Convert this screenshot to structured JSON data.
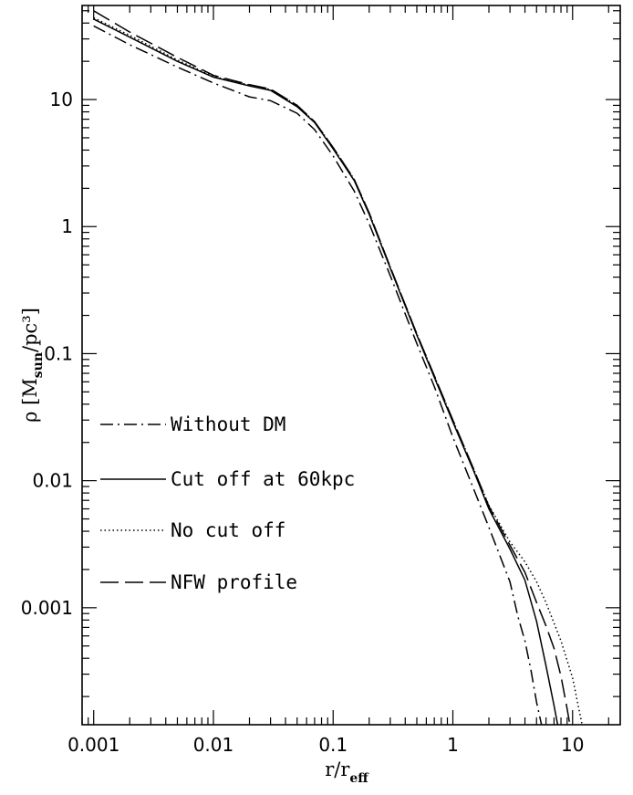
{
  "chart_data": {
    "type": "line",
    "title": "",
    "xscale": "log",
    "yscale": "log",
    "xlim": [
      0.0008,
      25
    ],
    "ylim": [
      0.00012,
      55
    ],
    "grid": false,
    "xticks": [
      {
        "value": 0.001,
        "label": "0.001"
      },
      {
        "value": 0.01,
        "label": "0.01"
      },
      {
        "value": 0.1,
        "label": "0.1"
      },
      {
        "value": 1,
        "label": "1"
      },
      {
        "value": 10,
        "label": "10"
      }
    ],
    "yticks": [
      {
        "value": 0.001,
        "label": "0.001"
      },
      {
        "value": 0.01,
        "label": "0.01"
      },
      {
        "value": 0.1,
        "label": "0.1"
      },
      {
        "value": 1,
        "label": "1"
      },
      {
        "value": 10,
        "label": "10"
      }
    ],
    "xlabel": {
      "main": "r/r",
      "sub": "eff"
    },
    "ylabel": {
      "pre": "ρ [M",
      "sub": "sun",
      "post": "/pc³]"
    },
    "legend_position": "left",
    "series": [
      {
        "name": "Without DM",
        "style": "dashdot",
        "x": [
          0.001,
          0.002,
          0.005,
          0.01,
          0.02,
          0.03,
          0.05,
          0.07,
          0.1,
          0.15,
          0.2,
          0.3,
          0.5,
          0.7,
          1,
          1.5,
          2,
          3,
          3.5,
          4,
          4.5,
          5,
          5.5
        ],
        "y": [
          38,
          27,
          18,
          13.5,
          10.5,
          9.8,
          7.8,
          5.8,
          3.6,
          1.9,
          1.05,
          0.41,
          0.12,
          0.055,
          0.022,
          0.0085,
          0.0043,
          0.0016,
          0.00085,
          0.00055,
          0.00032,
          0.00018,
          0.00012
        ]
      },
      {
        "name": "Cut off at 60kpc",
        "style": "solid",
        "x": [
          0.001,
          0.002,
          0.005,
          0.01,
          0.02,
          0.03,
          0.05,
          0.07,
          0.1,
          0.15,
          0.2,
          0.3,
          0.5,
          0.7,
          1,
          1.5,
          2,
          3,
          4,
          5,
          6,
          7,
          7.5
        ],
        "y": [
          43,
          31,
          20,
          15,
          12.8,
          11.8,
          8.8,
          6.6,
          4.1,
          2.3,
          1.25,
          0.47,
          0.14,
          0.065,
          0.029,
          0.0118,
          0.006,
          0.0029,
          0.00165,
          0.00078,
          0.00035,
          0.00017,
          0.00012
        ]
      },
      {
        "name": "No cut off",
        "style": "dotted",
        "x": [
          0.001,
          0.002,
          0.005,
          0.01,
          0.02,
          0.03,
          0.05,
          0.07,
          0.1,
          0.15,
          0.2,
          0.3,
          0.5,
          0.7,
          1,
          1.5,
          2,
          3,
          4,
          5,
          6,
          8,
          10,
          11,
          12
        ],
        "y": [
          44,
          32,
          20.5,
          15.2,
          13,
          12,
          9,
          6.7,
          4.2,
          2.35,
          1.28,
          0.48,
          0.143,
          0.067,
          0.03,
          0.0122,
          0.0064,
          0.0033,
          0.0023,
          0.0016,
          0.0011,
          0.00055,
          0.00028,
          0.00018,
          0.00012
        ]
      },
      {
        "name": "NFW profile",
        "style": "longdash",
        "x": [
          0.001,
          0.002,
          0.005,
          0.01,
          0.02,
          0.03,
          0.05,
          0.07,
          0.1,
          0.15,
          0.2,
          0.3,
          0.5,
          0.7,
          1,
          1.5,
          2,
          3,
          4,
          5,
          6,
          7,
          8,
          9,
          9.5
        ],
        "y": [
          50,
          34,
          21.5,
          15.5,
          13.1,
          12.1,
          9,
          6.7,
          4.2,
          2.35,
          1.28,
          0.48,
          0.143,
          0.067,
          0.03,
          0.0122,
          0.0063,
          0.0031,
          0.0019,
          0.0011,
          0.00072,
          0.00048,
          0.00029,
          0.00016,
          0.00012
        ]
      }
    ]
  }
}
